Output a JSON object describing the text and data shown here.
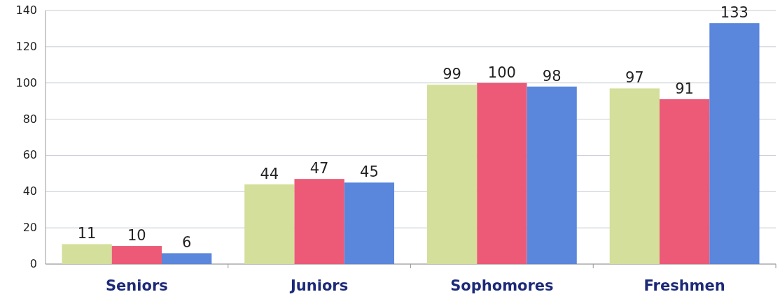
{
  "chart_data": {
    "type": "bar",
    "categories": [
      "Seniors",
      "Juniors",
      "Sophomores",
      "Freshmen"
    ],
    "series": [
      {
        "color": "#d3df9a",
        "values": [
          11,
          44,
          99,
          97
        ]
      },
      {
        "color": "#ec5a78",
        "values": [
          10,
          47,
          100,
          91
        ]
      },
      {
        "color": "#5a86dc",
        "values": [
          6,
          45,
          98,
          133
        ]
      }
    ],
    "ylim": [
      0,
      140
    ],
    "yticks": [
      0,
      20,
      40,
      60,
      80,
      100,
      120,
      140
    ],
    "grid": "y",
    "data_labels": true
  }
}
